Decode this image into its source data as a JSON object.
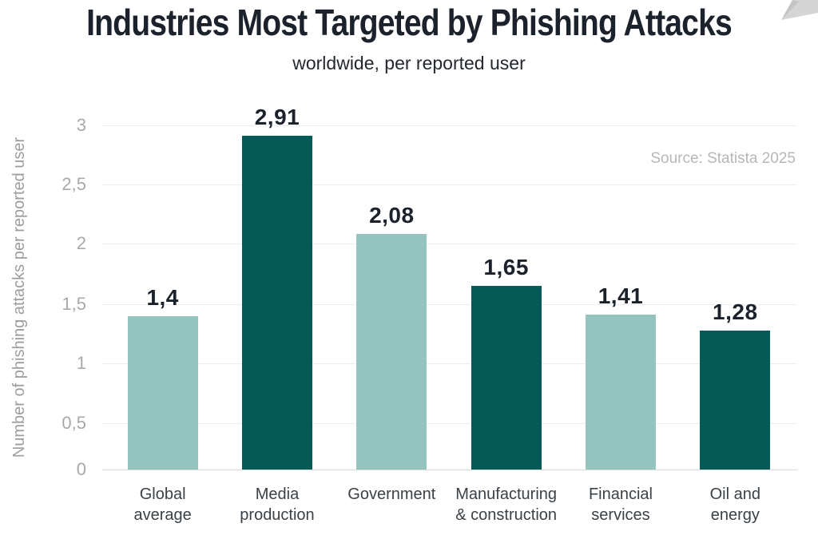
{
  "page": {
    "title": "Industries Most Targeted by Phishing Attacks",
    "subtitle": "worldwide, per reported user",
    "source": "Source: Statista 2025"
  },
  "chart_data": {
    "type": "bar",
    "title": "Industries Most Targeted by Phishing Attacks",
    "subtitle": "worldwide, per reported user",
    "source": "Source: Statista 2025",
    "ylabel": "Number of phishing attacks per reported user",
    "xlabel": "",
    "ylim": [
      0,
      3
    ],
    "yticks": [
      0,
      0.5,
      1,
      1.5,
      2,
      2.5,
      3
    ],
    "ytick_labels": [
      "0",
      "0,5",
      "1",
      "1,5",
      "2",
      "2,5",
      "3"
    ],
    "grid": true,
    "legend": false,
    "decimal_separator": ",",
    "categories": [
      "Global average",
      "Media production",
      "Government",
      "Manufacturing & construction",
      "Financial services",
      "Oil and energy"
    ],
    "category_lines": [
      [
        "Global",
        "average"
      ],
      [
        "Media",
        "production"
      ],
      [
        "Government"
      ],
      [
        "Manufacturing",
        "& construction"
      ],
      [
        "Financial",
        "services"
      ],
      [
        "Oil and",
        "energy"
      ]
    ],
    "values": [
      1.4,
      2.91,
      2.08,
      1.65,
      1.41,
      1.28
    ],
    "value_labels": [
      "1,4",
      "2,91",
      "2,08",
      "1,65",
      "1,41",
      "1,28"
    ],
    "bar_colors": [
      "#95c4be",
      "#055a55",
      "#95c4be",
      "#055a55",
      "#95c4be",
      "#055a55"
    ]
  },
  "colors": {
    "bar_light": "#95c4be",
    "bar_dark": "#055a55",
    "title_text": "#1b222b",
    "subtitle_text": "#23272e",
    "value_label_text": "#1b222b",
    "tick_text": "#a7a9ab",
    "axis_title_text": "#9b9da0",
    "category_text": "#3a4147",
    "grid_line": "#eceeee",
    "baseline": "#d8dada",
    "source_text": "#b5b7b9",
    "corner_shape": "#d5d5d5",
    "corner_shape_fold": "#c3c4c4"
  }
}
